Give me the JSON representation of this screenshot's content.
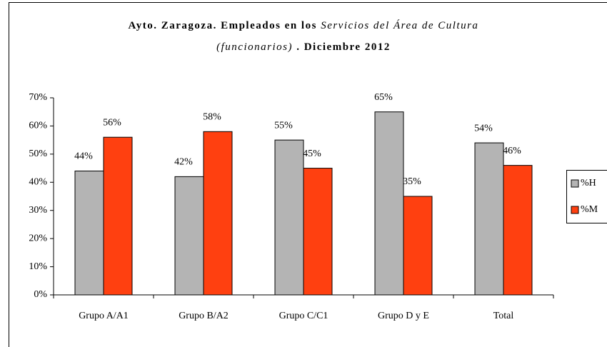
{
  "chart_data": {
    "type": "bar",
    "title": [
      "Ayto. Zaragoza. Empleados en los",
      "Servicios del Área de Cultura",
      "(funcionarios)",
      ". Diciembre 2012"
    ],
    "categories": [
      "Grupo A/A1",
      "Grupo B/A2",
      "Grupo C/C1",
      "Grupo D y E",
      "Total"
    ],
    "series": [
      {
        "name": "%H",
        "color": "#b4b4b4",
        "values": [
          44,
          42,
          55,
          65,
          54
        ],
        "value_labels": [
          "44%",
          "42%",
          "55%",
          "65%",
          "54%"
        ]
      },
      {
        "name": "%M",
        "color": "#ff4010",
        "values": [
          56,
          58,
          45,
          35,
          46
        ],
        "value_labels": [
          "56%",
          "58%",
          "45%",
          "35%",
          "46%"
        ]
      }
    ],
    "ylim": [
      0,
      70
    ],
    "yticks": [
      {
        "value": 0,
        "label": "0%"
      },
      {
        "value": 10,
        "label": "10%"
      },
      {
        "value": 20,
        "label": "20%"
      },
      {
        "value": 30,
        "label": "30%"
      },
      {
        "value": 40,
        "label": "40%"
      },
      {
        "value": 50,
        "label": "50%"
      },
      {
        "value": 60,
        "label": "60%"
      },
      {
        "value": 70,
        "label": "70%"
      }
    ],
    "grid": false,
    "legend": "right"
  }
}
